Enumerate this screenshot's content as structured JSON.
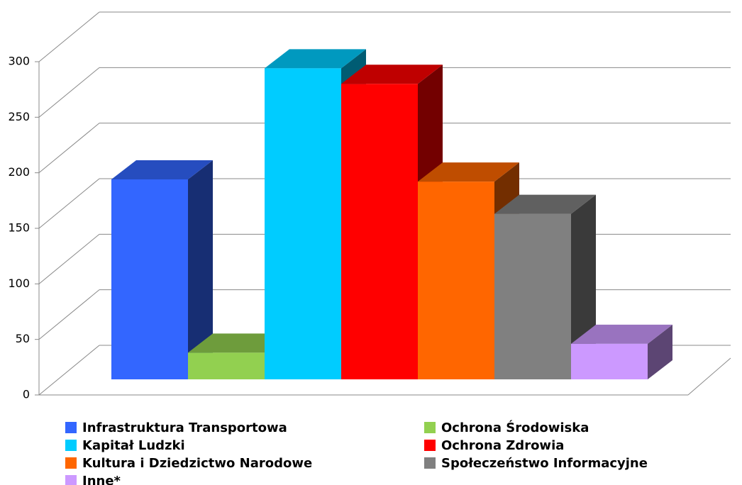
{
  "chart_data": {
    "type": "bar3d",
    "categories": [
      "Infrastruktura Transportowa",
      "Ochrona Środowiska",
      "Kapitał Ludzki",
      "Ochrona Zdrowia",
      "Kultura i Dziedzictwo Narodowe",
      "Społeczeństwo Informacyjne",
      "Inne*"
    ],
    "values": [
      180,
      24,
      280,
      266,
      178,
      149,
      32
    ],
    "colors": [
      "#3366ff",
      "#92d050",
      "#00ccff",
      "#ff0000",
      "#ff6600",
      "#808080",
      "#cc99ff"
    ],
    "ylim": [
      0,
      300
    ],
    "yticks": [
      0,
      50,
      100,
      150,
      200,
      250,
      300
    ],
    "grid": true
  }
}
